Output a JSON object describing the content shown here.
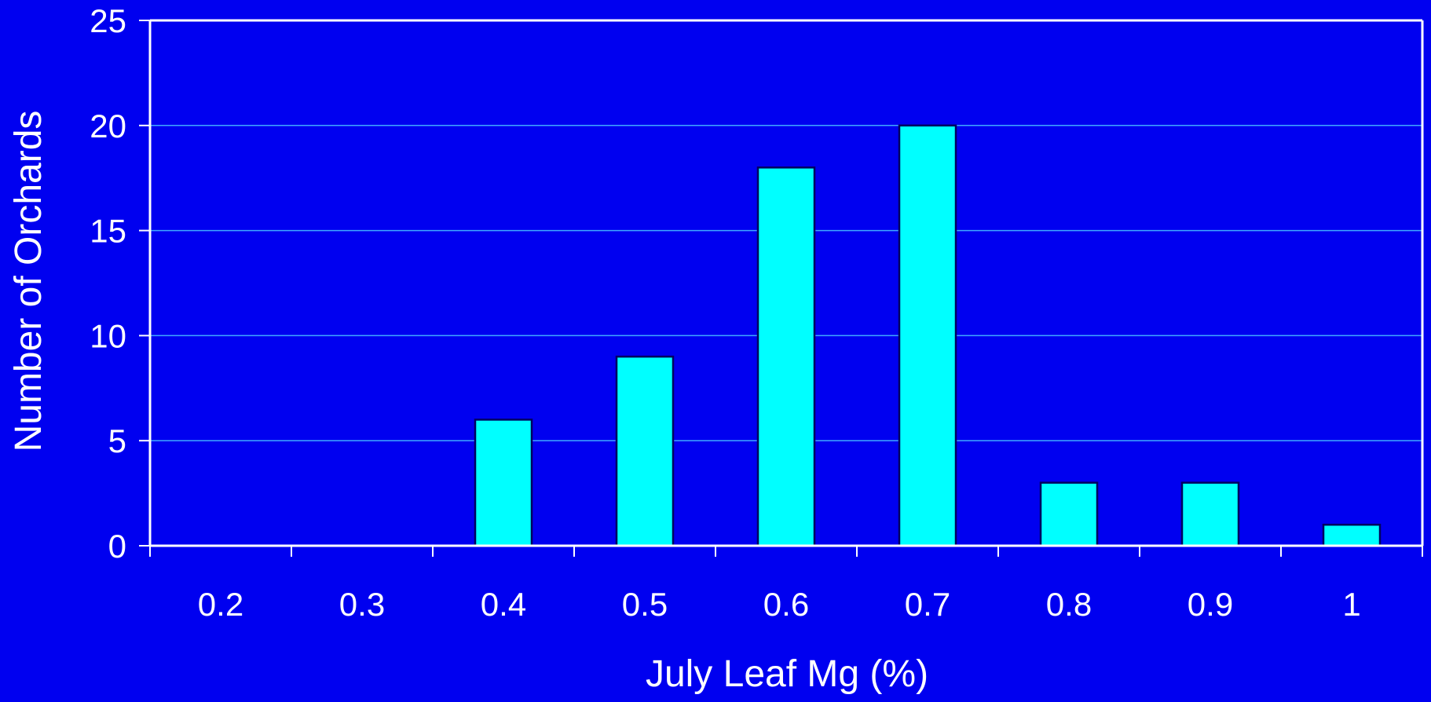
{
  "colors": {
    "background": "#0000F0",
    "bar_fill": "#00FFFF",
    "bar_stroke": "#000060",
    "axis": "#FFFFFF",
    "gridline": "#3FA8FF",
    "text": "#FFFFFF"
  },
  "chart_data": {
    "type": "bar",
    "categories": [
      "0.2",
      "0.3",
      "0.4",
      "0.5",
      "0.6",
      "0.7",
      "0.8",
      "0.9",
      "1"
    ],
    "values": [
      0,
      0,
      6,
      9,
      18,
      20,
      3,
      3,
      1
    ],
    "xlabel": "July Leaf Mg (%)",
    "ylabel": "Number of Orchards",
    "ylim": [
      0,
      25
    ],
    "yticks": [
      "0",
      "5",
      "10",
      "15",
      "20",
      "25"
    ],
    "grid": true,
    "legend": "none"
  }
}
